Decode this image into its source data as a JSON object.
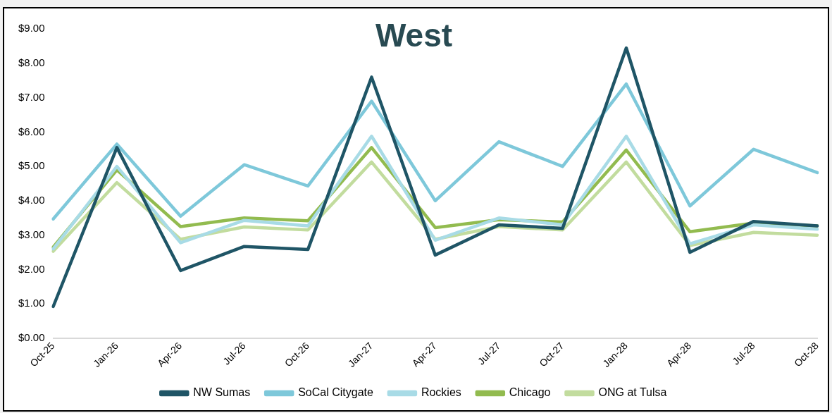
{
  "chart_data": {
    "type": "line",
    "title": "West",
    "categories": [
      "Oct-25",
      "Jan-26",
      "Apr-26",
      "Jul-26",
      "Oct-26",
      "Jan-27",
      "Apr-27",
      "Jul-27",
      "Oct-27",
      "Jan-28",
      "Apr-28",
      "Jul-28",
      "Oct-28"
    ],
    "series": [
      {
        "name": "NW Sumas",
        "color": "#1f5566",
        "values": [
          0.92,
          5.55,
          1.97,
          2.67,
          2.58,
          7.6,
          2.42,
          3.3,
          3.2,
          8.45,
          2.5,
          3.4,
          3.27
        ]
      },
      {
        "name": "SoCal Citygate",
        "color": "#7ec8da",
        "values": [
          3.47,
          5.65,
          3.55,
          5.05,
          4.43,
          6.9,
          4.0,
          5.72,
          5.0,
          7.4,
          3.85,
          5.5,
          4.82
        ]
      },
      {
        "name": "Rockies",
        "color": "#a8dbe6",
        "values": [
          2.6,
          5.0,
          2.78,
          3.43,
          3.27,
          5.88,
          2.85,
          3.5,
          3.3,
          5.88,
          2.75,
          3.3,
          3.17
        ]
      },
      {
        "name": "Chicago",
        "color": "#92bb4f",
        "values": [
          2.65,
          4.9,
          3.25,
          3.5,
          3.42,
          5.55,
          3.22,
          3.45,
          3.38,
          5.48,
          3.1,
          3.35,
          3.27
        ]
      },
      {
        "name": "ONG at Tulsa",
        "color": "#c2dc9e",
        "values": [
          2.53,
          4.53,
          2.88,
          3.24,
          3.15,
          5.13,
          2.88,
          3.25,
          3.15,
          5.13,
          2.7,
          3.08,
          3.0
        ]
      }
    ],
    "ylim": [
      0,
      9
    ],
    "yticks": [
      {
        "value": 0,
        "label": "$0.00"
      },
      {
        "value": 1,
        "label": "$1.00"
      },
      {
        "value": 2,
        "label": "$2.00"
      },
      {
        "value": 3,
        "label": "$3.00"
      },
      {
        "value": 4,
        "label": "$4.00"
      },
      {
        "value": 5,
        "label": "$5.00"
      },
      {
        "value": 6,
        "label": "$6.00"
      },
      {
        "value": 7,
        "label": "$7.00"
      },
      {
        "value": 8,
        "label": "$8.00"
      },
      {
        "value": 9,
        "label": "$9.00"
      }
    ],
    "grid": false,
    "legend": "bottom",
    "marker": "none",
    "line_style": "solid"
  }
}
